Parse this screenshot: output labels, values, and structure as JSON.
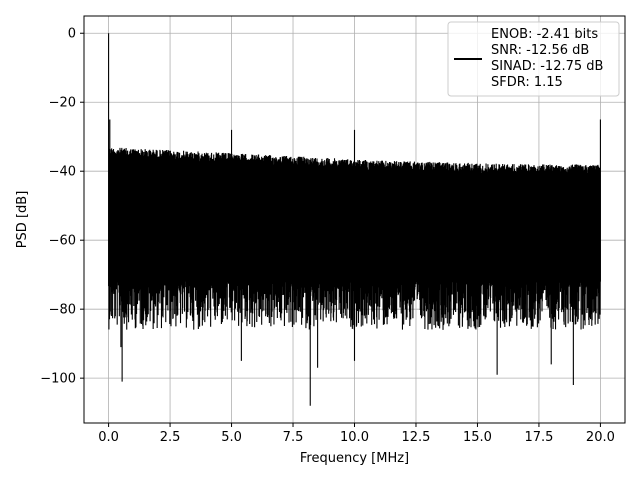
{
  "chart_data": {
    "type": "line",
    "xlabel": "Frequency [MHz]",
    "ylabel": "PSD [dB]",
    "xlim": [
      -1.0,
      21.0
    ],
    "ylim": [
      -113.0,
      5.0
    ],
    "xticks": [
      0.0,
      2.5,
      5.0,
      7.5,
      10.0,
      12.5,
      15.0,
      17.5,
      20.0
    ],
    "xtick_labels": [
      "0.0",
      "2.5",
      "5.0",
      "7.5",
      "10.0",
      "12.5",
      "15.0",
      "17.5",
      "20.0"
    ],
    "yticks": [
      0,
      -20,
      -40,
      -60,
      -80,
      -100
    ],
    "ytick_labels": [
      "0",
      "−20",
      "−40",
      "−60",
      "−80",
      "−100"
    ],
    "grid": true,
    "legend_position": "top-right",
    "legend_lines": [
      "ENOB: -2.41 bits",
      "SNR: -12.56 dB",
      "SINAD: -12.75 dB",
      "SFDR: 1.15"
    ],
    "line_color": "#000000",
    "series": [
      {
        "x_start": 0.0,
        "x_end": 20.0,
        "noise_floor_top": [
          -33,
          -34,
          -35,
          -36,
          -37,
          -37.5,
          -38,
          -38
        ],
        "noise_floor_bottom": [
          -72,
          -72,
          -72,
          -72,
          -72,
          -72,
          -72,
          -72
        ],
        "spikes": [
          {
            "x": 0.0,
            "y": 0.0
          },
          {
            "x": 0.05,
            "y": -25.0
          },
          {
            "x": 5.0,
            "y": -28.0
          },
          {
            "x": 10.0,
            "y": -28.0
          },
          {
            "x": 20.0,
            "y": -25.0
          }
        ],
        "deep_dips": [
          {
            "x": 0.55,
            "y": -101.0
          },
          {
            "x": 0.5,
            "y": -91.0
          },
          {
            "x": 5.4,
            "y": -95.0
          },
          {
            "x": 8.2,
            "y": -108.0
          },
          {
            "x": 8.5,
            "y": -97.0
          },
          {
            "x": 10.0,
            "y": -95.0
          },
          {
            "x": 15.8,
            "y": -99.0
          },
          {
            "x": 18.0,
            "y": -96.0
          },
          {
            "x": 18.9,
            "y": -102.0
          }
        ]
      }
    ]
  }
}
